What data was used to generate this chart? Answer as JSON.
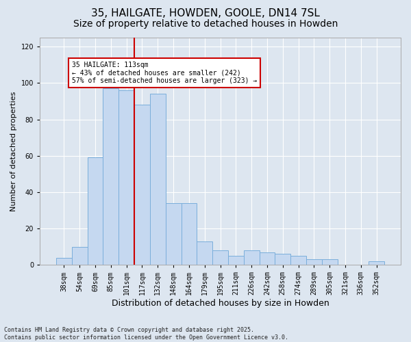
{
  "title_line1": "35, HAILGATE, HOWDEN, GOOLE, DN14 7SL",
  "title_line2": "Size of property relative to detached houses in Howden",
  "xlabel": "Distribution of detached houses by size in Howden",
  "ylabel": "Number of detached properties",
  "categories": [
    "38sqm",
    "54sqm",
    "69sqm",
    "85sqm",
    "101sqm",
    "117sqm",
    "132sqm",
    "148sqm",
    "164sqm",
    "179sqm",
    "195sqm",
    "211sqm",
    "226sqm",
    "242sqm",
    "258sqm",
    "274sqm",
    "289sqm",
    "305sqm",
    "321sqm",
    "336sqm",
    "352sqm"
  ],
  "values": [
    4,
    10,
    59,
    97,
    96,
    88,
    94,
    34,
    34,
    13,
    8,
    5,
    8,
    7,
    6,
    5,
    3,
    3,
    0,
    0,
    2
  ],
  "bar_color": "#c5d8f0",
  "bar_edge_color": "#7aaedb",
  "vline_color": "#cc0000",
  "vline_x_idx": 5,
  "annotation_text_line1": "35 HAILGATE: 113sqm",
  "annotation_text_line2": "← 43% of detached houses are smaller (242)",
  "annotation_text_line3": "57% of semi-detached houses are larger (323) →",
  "box_edge_color": "#cc0000",
  "ylim": [
    0,
    125
  ],
  "yticks": [
    0,
    20,
    40,
    60,
    80,
    100,
    120
  ],
  "background_color": "#dde6f0",
  "plot_bg_color": "#dde6f0",
  "grid_color": "#ffffff",
  "footer_text": "Contains HM Land Registry data © Crown copyright and database right 2025.\nContains public sector information licensed under the Open Government Licence v3.0.",
  "title_fontsize": 11,
  "subtitle_fontsize": 10,
  "xlabel_fontsize": 9,
  "ylabel_fontsize": 8,
  "tick_fontsize": 7,
  "annotation_fontsize": 7,
  "footer_fontsize": 6
}
